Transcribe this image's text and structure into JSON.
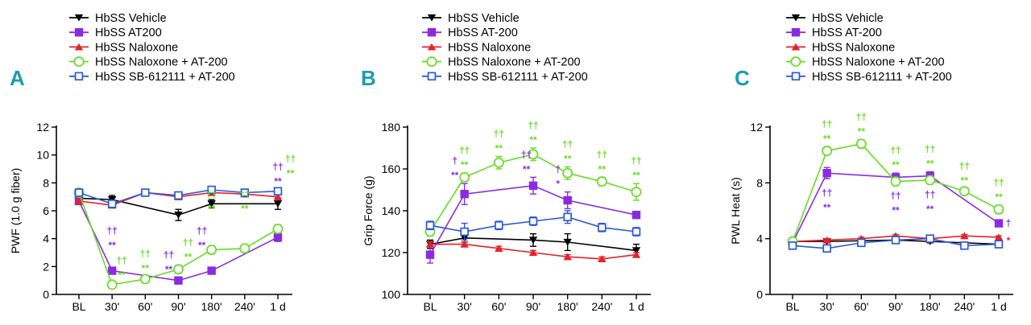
{
  "colors": {
    "vehicle": "#000000",
    "at200": "#8a2be2",
    "naloxone": "#e8202a",
    "nalox_at200": "#66dd22",
    "sb_at200": "#2a5ad8",
    "panel_letter": "#1a9bb5"
  },
  "chart_data": [
    {
      "type": "line",
      "panel_label": "A",
      "ylabel": "PWF (1.0 g fiber)",
      "xlabel": "",
      "categories": [
        "BL",
        "30'",
        "60'",
        "90'",
        "180'",
        "240'",
        "1 d"
      ],
      "ylim": [
        0,
        12
      ],
      "yticks": [
        "0",
        "2",
        "4",
        "6",
        "8",
        "10",
        "12"
      ],
      "legend": [
        "HbSS Vehicle",
        "HbSS AT200",
        "HbSS Naloxone",
        "HbSS Naloxone + AT-200",
        "HbSS SB-612111 + AT-200"
      ],
      "series": [
        {
          "name": "HbSS Vehicle",
          "key": "vehicle",
          "marker": "tri-down",
          "values": [
            6.9,
            6.8,
            null,
            5.7,
            6.5,
            null,
            6.5
          ],
          "errors": [
            0.3,
            0.3,
            null,
            0.4,
            0.3,
            null,
            0.4
          ]
        },
        {
          "name": "HbSS AT200",
          "key": "at200",
          "marker": "square-filled",
          "values": [
            6.7,
            1.7,
            null,
            1.0,
            1.7,
            null,
            4.1
          ],
          "errors": [
            0.2,
            0.2,
            null,
            0.2,
            0.2,
            null,
            0.3
          ]
        },
        {
          "name": "HbSS Naloxone",
          "key": "naloxone",
          "marker": "tri-up",
          "values": [
            6.7,
            6.4,
            7.3,
            7.0,
            7.3,
            7.2,
            7.0
          ],
          "errors": [
            0.2,
            0.2,
            0.2,
            0.2,
            0.2,
            0.2,
            0.2
          ]
        },
        {
          "name": "HbSS Naloxone + AT-200",
          "key": "nalox_at200",
          "marker": "circle-open",
          "values": [
            7.3,
            0.7,
            1.1,
            1.8,
            3.2,
            3.3,
            4.7
          ],
          "errors": [
            0.2,
            0.1,
            0.2,
            0.3,
            0.3,
            0.2,
            0.3
          ]
        },
        {
          "name": "HbSS SB-612111 + AT-200",
          "key": "sb_at200",
          "marker": "square-open",
          "values": [
            7.3,
            6.5,
            7.3,
            7.1,
            7.5,
            7.3,
            7.4
          ],
          "errors": [
            0.2,
            0.2,
            0.2,
            0.2,
            0.2,
            0.2,
            0.2
          ]
        }
      ],
      "annotations": [
        {
          "x": "30'",
          "row": 2,
          "text": "††",
          "key": "at200"
        },
        {
          "x": "30'",
          "row": 1,
          "text": "**",
          "key": "at200"
        },
        {
          "x": "30'",
          "row": 1,
          "text": "††",
          "key": "nalox_at200",
          "shift": 1
        },
        {
          "x": "30'",
          "row": 0,
          "text": "**",
          "key": "nalox_at200",
          "shift": 1
        },
        {
          "x": "60'",
          "row": 1,
          "text": "††",
          "key": "nalox_at200"
        },
        {
          "x": "60'",
          "row": 0,
          "text": "**",
          "key": "nalox_at200"
        },
        {
          "x": "90'",
          "row": 1,
          "text": "††",
          "key": "at200",
          "shift": -1
        },
        {
          "x": "90'",
          "row": 0,
          "text": "**",
          "key": "at200",
          "shift": -1
        },
        {
          "x": "90'",
          "row": 1,
          "text": "††",
          "key": "nalox_at200",
          "shift": 1
        },
        {
          "x": "90'",
          "row": 0,
          "text": "**",
          "key": "nalox_at200",
          "shift": 1
        },
        {
          "x": "180'",
          "row": 2,
          "text": "††",
          "key": "at200",
          "shift": -1
        },
        {
          "x": "180'",
          "row": 1,
          "text": "**",
          "key": "at200",
          "shift": -1
        },
        {
          "x": "180'",
          "row": 3,
          "text": "††",
          "key": "nalox_at200"
        },
        {
          "x": "180'",
          "row": 2,
          "text": "**",
          "key": "nalox_at200"
        },
        {
          "x": "240'",
          "row": 3,
          "text": "††",
          "key": "nalox_at200"
        },
        {
          "x": "240'",
          "row": 2,
          "text": "**",
          "key": "nalox_at200"
        },
        {
          "x": "1 d",
          "row": 4,
          "text": "††",
          "key": "at200"
        },
        {
          "x": "1 d",
          "row": 3,
          "text": "**",
          "key": "at200"
        },
        {
          "x": "1 d",
          "row": 4,
          "text": "††",
          "key": "nalox_at200",
          "shift": 1.3
        },
        {
          "x": "1 d",
          "row": 3,
          "text": "**",
          "key": "nalox_at200",
          "shift": 1.3
        }
      ]
    },
    {
      "type": "line",
      "panel_label": "B",
      "ylabel": "Grip Force (g)",
      "xlabel": "",
      "categories": [
        "BL",
        "30'",
        "60'",
        "90'",
        "180'",
        "240'",
        "1 d"
      ],
      "ylim": [
        100,
        180
      ],
      "yticks": [
        "100",
        "120",
        "140",
        "160",
        "180"
      ],
      "legend": [
        "HbSS Vehicle",
        "HbSS AT-200",
        "HbSS Naloxone",
        "HbSS Naloxone + AT-200",
        "HbSS SB-612111 + AT-200"
      ],
      "series": [
        {
          "name": "HbSS Vehicle",
          "key": "vehicle",
          "marker": "tri-down",
          "values": [
            124,
            127,
            null,
            126,
            125,
            null,
            121
          ],
          "errors": [
            2,
            2,
            null,
            3,
            4,
            null,
            3
          ]
        },
        {
          "name": "HbSS AT-200",
          "key": "at200",
          "marker": "square-filled",
          "values": [
            119,
            148,
            null,
            152,
            145,
            null,
            138
          ],
          "errors": [
            4,
            5,
            null,
            4,
            4,
            null,
            1
          ]
        },
        {
          "name": "HbSS Naloxone",
          "key": "naloxone",
          "marker": "tri-up",
          "values": [
            124,
            124,
            122,
            120,
            118,
            117,
            119
          ],
          "errors": [
            1,
            1,
            1,
            1,
            1,
            1,
            1
          ]
        },
        {
          "name": "HbSS Naloxone + AT-200",
          "key": "nalox_at200",
          "marker": "circle-open",
          "values": [
            130,
            156,
            163,
            167,
            158,
            154,
            149
          ],
          "errors": [
            2,
            2,
            3,
            3,
            3,
            2,
            4
          ]
        },
        {
          "name": "HbSS SB-612111 + AT-200",
          "key": "sb_at200",
          "marker": "square-open",
          "values": [
            133,
            130,
            133,
            135,
            137,
            132,
            130
          ],
          "errors": [
            2,
            4,
            2,
            2,
            3,
            2,
            2
          ]
        }
      ],
      "annotations": [
        {
          "x": "30'",
          "row": 1,
          "text": "†",
          "key": "at200",
          "shift": -1
        },
        {
          "x": "30'",
          "row": 0,
          "text": "**",
          "key": "at200",
          "shift": -1
        },
        {
          "x": "30'",
          "row": 1,
          "text": "††",
          "key": "nalox_at200"
        },
        {
          "x": "30'",
          "row": 0,
          "text": "**",
          "key": "nalox_at200"
        },
        {
          "x": "60'",
          "row": 1,
          "text": "††",
          "key": "nalox_at200"
        },
        {
          "x": "60'",
          "row": 0,
          "text": "**",
          "key": "nalox_at200"
        },
        {
          "x": "90'",
          "row": 1,
          "text": "††",
          "key": "nalox_at200"
        },
        {
          "x": "90'",
          "row": 0,
          "text": "**",
          "key": "nalox_at200"
        },
        {
          "x": "90'",
          "row": 1,
          "text": "††",
          "key": "at200",
          "shift": -0.7
        },
        {
          "x": "90'",
          "row": 0,
          "text": "**",
          "key": "at200",
          "shift": -0.7
        },
        {
          "x": "180'",
          "row": 1,
          "text": "††",
          "key": "nalox_at200"
        },
        {
          "x": "180'",
          "row": 0,
          "text": "**",
          "key": "nalox_at200"
        },
        {
          "x": "180'",
          "row": 1,
          "text": "†",
          "key": "at200",
          "shift": -1
        },
        {
          "x": "180'",
          "row": 0,
          "text": "*",
          "key": "at200",
          "shift": -1
        },
        {
          "x": "240'",
          "row": 1,
          "text": "††",
          "key": "nalox_at200"
        },
        {
          "x": "240'",
          "row": 0,
          "text": "**",
          "key": "nalox_at200"
        },
        {
          "x": "1 d",
          "row": 1,
          "text": "††",
          "key": "nalox_at200"
        },
        {
          "x": "1 d",
          "row": 0,
          "text": "**",
          "key": "nalox_at200"
        }
      ]
    },
    {
      "type": "line",
      "panel_label": "C",
      "ylabel": "PWL Heat (s)",
      "xlabel": "",
      "categories": [
        "BL",
        "30'",
        "60'",
        "90'",
        "180'",
        "240'",
        "1 d"
      ],
      "ylim": [
        0,
        12
      ],
      "yticks": [
        "0",
        "4",
        "8",
        "12"
      ],
      "legend": [
        "HbSS Vehicle",
        "HbSS AT-200",
        "HbSS Naloxone",
        "HbSS Naloxone + AT-200",
        "HbSS SB-612111 + AT-200"
      ],
      "series": [
        {
          "name": "HbSS Vehicle",
          "key": "vehicle",
          "marker": "tri-down",
          "values": [
            3.8,
            3.8,
            null,
            3.9,
            3.8,
            null,
            3.6
          ],
          "errors": [
            0.1,
            0.1,
            null,
            0.1,
            0.1,
            null,
            0.1
          ]
        },
        {
          "name": "HbSS AT-200",
          "key": "at200",
          "marker": "square-filled",
          "values": [
            3.7,
            8.7,
            null,
            8.4,
            8.5,
            null,
            5.1
          ],
          "errors": [
            0.2,
            0.4,
            null,
            0.3,
            0.3,
            null,
            0.2
          ]
        },
        {
          "name": "HbSS Naloxone",
          "key": "naloxone",
          "marker": "tri-up",
          "values": [
            3.8,
            3.9,
            4.0,
            4.2,
            4.0,
            4.2,
            4.1
          ],
          "errors": [
            0.1,
            0.1,
            0.1,
            0.1,
            0.1,
            0.1,
            0.1
          ]
        },
        {
          "name": "HbSS Naloxone + AT-200",
          "key": "nalox_at200",
          "marker": "circle-open",
          "values": [
            3.8,
            10.3,
            10.8,
            8.1,
            8.2,
            7.4,
            6.1
          ],
          "errors": [
            0.1,
            0.3,
            0.3,
            0.3,
            0.3,
            0.2,
            0.3
          ]
        },
        {
          "name": "HbSS SB-612111 + AT-200",
          "key": "sb_at200",
          "marker": "square-open",
          "values": [
            3.5,
            3.3,
            3.7,
            3.9,
            4.0,
            3.5,
            3.6
          ],
          "errors": [
            0.1,
            0.1,
            0.1,
            0.1,
            0.1,
            0.1,
            0.1
          ]
        }
      ],
      "annotations": [
        {
          "x": "30'",
          "row": 1,
          "text": "††",
          "key": "nalox_at200"
        },
        {
          "x": "30'",
          "row": 0,
          "text": "**",
          "key": "nalox_at200"
        },
        {
          "x": "30'",
          "row": -2,
          "text": "††",
          "key": "at200"
        },
        {
          "x": "30'",
          "row": -3,
          "text": "**",
          "key": "at200"
        },
        {
          "x": "60'",
          "row": 1,
          "text": "††",
          "key": "nalox_at200"
        },
        {
          "x": "60'",
          "row": 0,
          "text": "**",
          "key": "nalox_at200"
        },
        {
          "x": "90'",
          "row": 1,
          "text": "††",
          "key": "nalox_at200",
          "on": "at200"
        },
        {
          "x": "90'",
          "row": 0,
          "text": "**",
          "key": "nalox_at200",
          "on": "at200"
        },
        {
          "x": "90'",
          "row": -2,
          "text": "††",
          "key": "at200"
        },
        {
          "x": "90'",
          "row": -3,
          "text": "**",
          "key": "at200"
        },
        {
          "x": "180'",
          "row": 1,
          "text": "††",
          "key": "nalox_at200",
          "on": "at200"
        },
        {
          "x": "180'",
          "row": 0,
          "text": "**",
          "key": "nalox_at200",
          "on": "at200"
        },
        {
          "x": "180'",
          "row": -2,
          "text": "††",
          "key": "at200"
        },
        {
          "x": "180'",
          "row": -3,
          "text": "**",
          "key": "at200"
        },
        {
          "x": "240'",
          "row": 1,
          "text": "††",
          "key": "nalox_at200"
        },
        {
          "x": "240'",
          "row": 0,
          "text": "**",
          "key": "nalox_at200"
        },
        {
          "x": "1 d",
          "row": 1,
          "text": "††",
          "key": "nalox_at200"
        },
        {
          "x": "1 d",
          "row": 0,
          "text": "**",
          "key": "nalox_at200"
        },
        {
          "x": "1 d",
          "row": "side",
          "text": "†",
          "key": "at200"
        },
        {
          "x": "1 d",
          "row": "side2",
          "text": "*",
          "key": "naloxone"
        }
      ]
    }
  ]
}
